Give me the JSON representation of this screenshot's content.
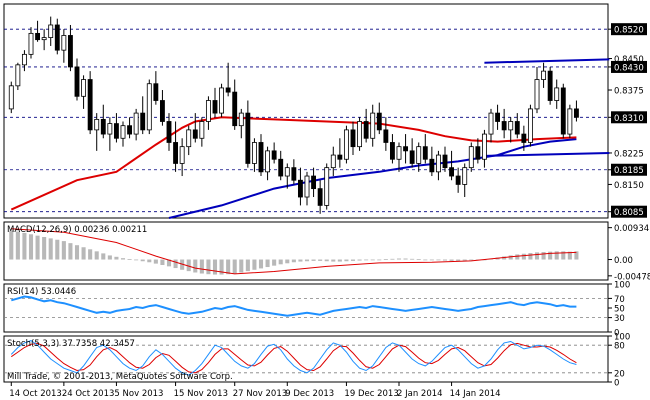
{
  "colors": {
    "background": "#ffffff",
    "frame": "#000000",
    "grid": "#000080",
    "bull_body": "#ffffff",
    "bear_body": "#000000",
    "wick": "#000000",
    "ema": "#dd0000",
    "sma": "#0000bb",
    "trend": "#0000bb",
    "macd_hist": "#b8b8b8",
    "macd_signal": "#dd0000",
    "rsi": "#1e90ff",
    "stoch_main": "#1e90ff",
    "stoch_signal": "#dd0000",
    "price_box": "#000000"
  },
  "chart_data": {
    "type": "candlestick",
    "symbol_title": "",
    "main": {
      "ylim": [
        0.807,
        0.858
      ],
      "y_tick_labels": [
        {
          "value": 0.852,
          "text": "0.8520",
          "boxed": true,
          "dashed": true
        },
        {
          "value": 0.845,
          "text": "0.8450",
          "boxed": false,
          "dashed": false
        },
        {
          "value": 0.843,
          "text": "0.8430",
          "boxed": true,
          "dashed": true
        },
        {
          "value": 0.8375,
          "text": "0.8375",
          "boxed": false,
          "dashed": false
        },
        {
          "value": 0.831,
          "text": "0.8310",
          "boxed": true,
          "dashed": true
        },
        {
          "value": 0.8225,
          "text": "0.8225",
          "boxed": false,
          "dashed": false
        },
        {
          "value": 0.8185,
          "text": "0.8185",
          "boxed": true,
          "dashed": true
        },
        {
          "value": 0.815,
          "text": "0.8150",
          "boxed": false,
          "dashed": false
        },
        {
          "value": 0.8085,
          "text": "0.8085",
          "boxed": true,
          "dashed": true
        }
      ],
      "candles": [
        [
          0.833,
          0.8395,
          0.832,
          0.8385
        ],
        [
          0.8385,
          0.844,
          0.8375,
          0.8435
        ],
        [
          0.8435,
          0.847,
          0.842,
          0.846
        ],
        [
          0.846,
          0.8525,
          0.845,
          0.851
        ],
        [
          0.851,
          0.854,
          0.849,
          0.8495
        ],
        [
          0.8495,
          0.852,
          0.847,
          0.85
        ],
        [
          0.85,
          0.855,
          0.848,
          0.853
        ],
        [
          0.853,
          0.8545,
          0.846,
          0.847
        ],
        [
          0.847,
          0.852,
          0.844,
          0.8505
        ],
        [
          0.8505,
          0.853,
          0.842,
          0.843
        ],
        [
          0.843,
          0.845,
          0.835,
          0.836
        ],
        [
          0.836,
          0.841,
          0.833,
          0.84
        ],
        [
          0.84,
          0.842,
          0.827,
          0.828
        ],
        [
          0.828,
          0.832,
          0.823,
          0.8305
        ],
        [
          0.8305,
          0.834,
          0.826,
          0.827
        ],
        [
          0.827,
          0.831,
          0.823,
          0.8295
        ],
        [
          0.8295,
          0.832,
          0.825,
          0.826
        ],
        [
          0.826,
          0.83,
          0.824,
          0.829
        ],
        [
          0.829,
          0.831,
          0.826,
          0.827
        ],
        [
          0.827,
          0.833,
          0.8255,
          0.832
        ],
        [
          0.832,
          0.836,
          0.827,
          0.828
        ],
        [
          0.828,
          0.84,
          0.827,
          0.839
        ],
        [
          0.839,
          0.842,
          0.834,
          0.835
        ],
        [
          0.835,
          0.8375,
          0.829,
          0.83
        ],
        [
          0.83,
          0.832,
          0.823,
          0.825
        ],
        [
          0.825,
          0.83,
          0.818,
          0.82
        ],
        [
          0.82,
          0.826,
          0.817,
          0.824
        ],
        [
          0.824,
          0.829,
          0.822,
          0.828
        ],
        [
          0.828,
          0.832,
          0.825,
          0.826
        ],
        [
          0.826,
          0.831,
          0.824,
          0.83
        ],
        [
          0.83,
          0.836,
          0.828,
          0.835
        ],
        [
          0.835,
          0.838,
          0.831,
          0.832
        ],
        [
          0.832,
          0.839,
          0.831,
          0.838
        ],
        [
          0.838,
          0.844,
          0.836,
          0.837
        ],
        [
          0.837,
          0.84,
          0.828,
          0.829
        ],
        [
          0.829,
          0.833,
          0.826,
          0.832
        ],
        [
          0.832,
          0.835,
          0.819,
          0.82
        ],
        [
          0.82,
          0.826,
          0.818,
          0.825
        ],
        [
          0.825,
          0.827,
          0.817,
          0.818
        ],
        [
          0.818,
          0.824,
          0.816,
          0.823
        ],
        [
          0.823,
          0.825,
          0.82,
          0.821
        ],
        [
          0.821,
          0.823,
          0.816,
          0.817
        ],
        [
          0.817,
          0.82,
          0.814,
          0.819
        ],
        [
          0.819,
          0.821,
          0.815,
          0.816
        ],
        [
          0.816,
          0.819,
          0.81,
          0.812
        ],
        [
          0.812,
          0.818,
          0.81,
          0.817
        ],
        [
          0.817,
          0.819,
          0.812,
          0.814
        ],
        [
          0.814,
          0.816,
          0.808,
          0.81
        ],
        [
          0.81,
          0.82,
          0.809,
          0.819
        ],
        [
          0.819,
          0.824,
          0.817,
          0.822
        ],
        [
          0.822,
          0.826,
          0.819,
          0.821
        ],
        [
          0.821,
          0.829,
          0.82,
          0.828
        ],
        [
          0.828,
          0.83,
          0.822,
          0.824
        ],
        [
          0.824,
          0.831,
          0.823,
          0.83
        ],
        [
          0.83,
          0.833,
          0.825,
          0.826
        ],
        [
          0.826,
          0.834,
          0.824,
          0.832
        ],
        [
          0.832,
          0.8345,
          0.827,
          0.828
        ],
        [
          0.828,
          0.831,
          0.823,
          0.825
        ],
        [
          0.825,
          0.827,
          0.82,
          0.821
        ],
        [
          0.821,
          0.825,
          0.818,
          0.824
        ],
        [
          0.824,
          0.827,
          0.82,
          0.823
        ],
        [
          0.823,
          0.826,
          0.819,
          0.82
        ],
        [
          0.82,
          0.825,
          0.818,
          0.824
        ],
        [
          0.824,
          0.827,
          0.82,
          0.821
        ],
        [
          0.821,
          0.824,
          0.817,
          0.818
        ],
        [
          0.818,
          0.823,
          0.816,
          0.822
        ],
        [
          0.822,
          0.824,
          0.818,
          0.819
        ],
        [
          0.819,
          0.823,
          0.816,
          0.817
        ],
        [
          0.817,
          0.819,
          0.813,
          0.815
        ],
        [
          0.815,
          0.82,
          0.812,
          0.819
        ],
        [
          0.819,
          0.825,
          0.818,
          0.824
        ],
        [
          0.824,
          0.826,
          0.82,
          0.821
        ],
        [
          0.821,
          0.828,
          0.819,
          0.827
        ],
        [
          0.827,
          0.833,
          0.825,
          0.832
        ],
        [
          0.832,
          0.834,
          0.828,
          0.83
        ],
        [
          0.83,
          0.833,
          0.826,
          0.828
        ],
        [
          0.828,
          0.831,
          0.825,
          0.83
        ],
        [
          0.83,
          0.832,
          0.826,
          0.827
        ],
        [
          0.827,
          0.829,
          0.823,
          0.825
        ],
        [
          0.825,
          0.834,
          0.824,
          0.833
        ],
        [
          0.833,
          0.843,
          0.832,
          0.84
        ],
        [
          0.84,
          0.844,
          0.838,
          0.842
        ],
        [
          0.842,
          0.843,
          0.834,
          0.835
        ],
        [
          0.835,
          0.84,
          0.833,
          0.838
        ],
        [
          0.838,
          0.839,
          0.826,
          0.827
        ],
        [
          0.827,
          0.834,
          0.826,
          0.833
        ],
        [
          0.833,
          0.835,
          0.83,
          0.831
        ]
      ],
      "ema": [
        [
          0,
          0.809
        ],
        [
          10,
          0.816
        ],
        [
          16,
          0.818
        ],
        [
          22,
          0.8245
        ],
        [
          26,
          0.8285
        ],
        [
          28,
          0.83
        ],
        [
          32,
          0.831
        ],
        [
          40,
          0.8305
        ],
        [
          48,
          0.83
        ],
        [
          56,
          0.8295
        ],
        [
          62,
          0.828
        ],
        [
          66,
          0.8265
        ],
        [
          70,
          0.8255
        ],
        [
          74,
          0.8252
        ],
        [
          80,
          0.8258
        ],
        [
          86,
          0.8262
        ]
      ],
      "sma": [
        [
          24,
          0.807
        ],
        [
          32,
          0.81
        ],
        [
          40,
          0.814
        ],
        [
          48,
          0.8165
        ],
        [
          56,
          0.818
        ],
        [
          62,
          0.8195
        ],
        [
          68,
          0.8205
        ],
        [
          74,
          0.822
        ],
        [
          78,
          0.824
        ],
        [
          82,
          0.8252
        ],
        [
          86,
          0.8258
        ]
      ],
      "trend_lines": [
        {
          "points": [
            [
              72,
              0.844
            ],
            [
              91,
              0.8448
            ]
          ]
        },
        {
          "points": [
            [
              72,
              0.8218
            ],
            [
              91,
              0.8225
            ]
          ]
        }
      ]
    },
    "macd": {
      "label": "MACD(12,26,9) 0.00236 0.00211",
      "ylim": [
        -0.006,
        0.011
      ],
      "y_tick_labels": [
        {
          "value": 0.00934,
          "text": "0.00934"
        },
        {
          "value": 0.0,
          "text": "0.00"
        },
        {
          "value": -0.00478,
          "text": "-0.00478"
        }
      ],
      "histogram": [
        0.0085,
        0.0082,
        0.0078,
        0.0074,
        0.007,
        0.0066,
        0.0062,
        0.0058,
        0.0054,
        0.0048,
        0.0042,
        0.0036,
        0.003,
        0.0024,
        0.0018,
        0.0012,
        0.0008,
        0.0004,
        0.0001,
        -0.0002,
        -0.0005,
        -0.0008,
        -0.0012,
        -0.0016,
        -0.002,
        -0.0025,
        -0.003,
        -0.0034,
        -0.0038,
        -0.0041,
        -0.0043,
        -0.0044,
        -0.0044,
        -0.0043,
        -0.0041,
        -0.0038,
        -0.0034,
        -0.003,
        -0.0026,
        -0.0022,
        -0.0018,
        -0.0014,
        -0.0011,
        -0.0008,
        -0.0006,
        -0.0005,
        -0.0004,
        -0.0004,
        -0.0005,
        -0.0006,
        -0.0006,
        -0.0005,
        -0.0004,
        -0.0003,
        -0.0002,
        -0.0001,
        0.0,
        0.0001,
        0.0002,
        0.0003,
        0.0003,
        0.0002,
        0.0001,
        0.0,
        -0.0001,
        -0.0002,
        -0.0003,
        -0.0004,
        -0.0004,
        -0.0003,
        -0.0002,
        -0.0001,
        0.0,
        0.0003,
        0.0006,
        0.0009,
        0.0012,
        0.0015,
        0.0017,
        0.0019,
        0.0021,
        0.0022,
        0.0023,
        0.0024,
        0.0024,
        0.0023,
        0.0024
      ],
      "signal": [
        [
          0,
          0.009
        ],
        [
          8,
          0.008
        ],
        [
          16,
          0.005
        ],
        [
          22,
          0.001
        ],
        [
          28,
          -0.0025
        ],
        [
          34,
          -0.0042
        ],
        [
          40,
          -0.0035
        ],
        [
          48,
          -0.002
        ],
        [
          56,
          -0.001
        ],
        [
          64,
          -0.0008
        ],
        [
          70,
          -0.0004
        ],
        [
          76,
          0.0008
        ],
        [
          82,
          0.0018
        ],
        [
          86,
          0.0021
        ]
      ]
    },
    "rsi": {
      "label": "RSI(14) 53.0446",
      "ylim": [
        0,
        100
      ],
      "y_tick_labels": [
        {
          "value": 100,
          "text": "100"
        },
        {
          "value": 70,
          "text": "70"
        },
        {
          "value": 50,
          "text": "50"
        },
        {
          "value": 30,
          "text": "30"
        },
        {
          "value": 0,
          "text": "0"
        }
      ],
      "levels": [
        70,
        30
      ],
      "values": [
        66,
        70,
        74,
        72,
        68,
        64,
        66,
        62,
        60,
        56,
        52,
        48,
        44,
        40,
        42,
        40,
        44,
        46,
        48,
        52,
        50,
        54,
        56,
        52,
        48,
        44,
        40,
        38,
        40,
        42,
        46,
        50,
        48,
        52,
        54,
        50,
        46,
        44,
        42,
        40,
        38,
        36,
        34,
        36,
        38,
        40,
        38,
        36,
        40,
        44,
        46,
        48,
        50,
        52,
        50,
        54,
        52,
        50,
        48,
        46,
        44,
        46,
        48,
        50,
        52,
        50,
        48,
        46,
        44,
        46,
        48,
        52,
        54,
        56,
        58,
        60,
        62,
        58,
        56,
        60,
        62,
        60,
        58,
        54,
        56,
        53,
        53
      ]
    },
    "stoch": {
      "label": "Stoch(5,3,3) 37.7358 42.3457",
      "ylim": [
        0,
        100
      ],
      "y_tick_labels": [
        {
          "value": 100,
          "text": "100"
        },
        {
          "value": 80,
          "text": "80"
        },
        {
          "value": 20,
          "text": "20"
        },
        {
          "value": 0,
          "text": "0"
        }
      ],
      "levels": [
        80,
        20
      ],
      "main": [
        60,
        75,
        85,
        90,
        80,
        65,
        50,
        40,
        30,
        25,
        20,
        35,
        55,
        75,
        80,
        70,
        55,
        40,
        30,
        25,
        35,
        55,
        70,
        60,
        45,
        30,
        20,
        15,
        25,
        40,
        60,
        80,
        75,
        60,
        45,
        35,
        30,
        40,
        60,
        78,
        82,
        70,
        50,
        35,
        25,
        20,
        30,
        50,
        70,
        85,
        80,
        65,
        45,
        30,
        25,
        35,
        55,
        75,
        85,
        80,
        65,
        50,
        40,
        35,
        45,
        60,
        75,
        80,
        70,
        55,
        40,
        30,
        35,
        50,
        70,
        85,
        88,
        80,
        72,
        75,
        80,
        78,
        70,
        60,
        50,
        42,
        38
      ],
      "signal": [
        55,
        65,
        75,
        82,
        84,
        78,
        65,
        52,
        40,
        32,
        25,
        27,
        37,
        55,
        70,
        75,
        68,
        55,
        42,
        32,
        30,
        38,
        53,
        62,
        58,
        45,
        32,
        22,
        20,
        27,
        42,
        60,
        72,
        72,
        60,
        48,
        37,
        35,
        43,
        59,
        73,
        77,
        67,
        52,
        37,
        27,
        25,
        33,
        50,
        68,
        78,
        77,
        63,
        47,
        33,
        30,
        38,
        55,
        72,
        80,
        77,
        65,
        52,
        42,
        40,
        47,
        60,
        72,
        75,
        68,
        55,
        42,
        35,
        38,
        52,
        68,
        81,
        84,
        80,
        76,
        76,
        78,
        76,
        69,
        60,
        50,
        42
      ]
    },
    "x_tick_labels": [
      {
        "index": 0,
        "text": "14 Oct 2013"
      },
      {
        "index": 8,
        "text": "24 Oct 2013"
      },
      {
        "index": 16,
        "text": "5 Nov 2013"
      },
      {
        "index": 25,
        "text": "15 Nov 2013"
      },
      {
        "index": 34,
        "text": "27 Nov 2013"
      },
      {
        "index": 42,
        "text": "9 Dec 2013"
      },
      {
        "index": 51,
        "text": "19 Dec 2013"
      },
      {
        "index": 59,
        "text": "2 Jan 2014"
      },
      {
        "index": 67,
        "text": "14 Jan 2014"
      }
    ]
  },
  "footer": {
    "copyright": "Mill Trade, © 2001-2013, MetaQuotes Software Corp."
  }
}
